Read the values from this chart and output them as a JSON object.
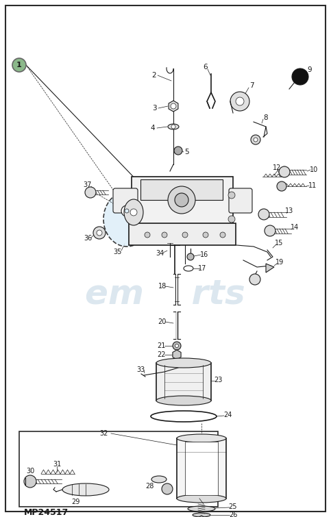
{
  "catalog_number": "MP24517",
  "background_color": "#ffffff",
  "border_color": "#2a2a2a",
  "line_color": "#1a1a1a",
  "watermark_color": "#c5d8e5",
  "fig_width": 4.83,
  "fig_height": 7.55,
  "item1_bubble_color": "#8bb88a",
  "light_blue_fill": "#ddeef8",
  "light_gray": "#e8e8e8",
  "mid_gray": "#cccccc",
  "dark_gray": "#555555"
}
